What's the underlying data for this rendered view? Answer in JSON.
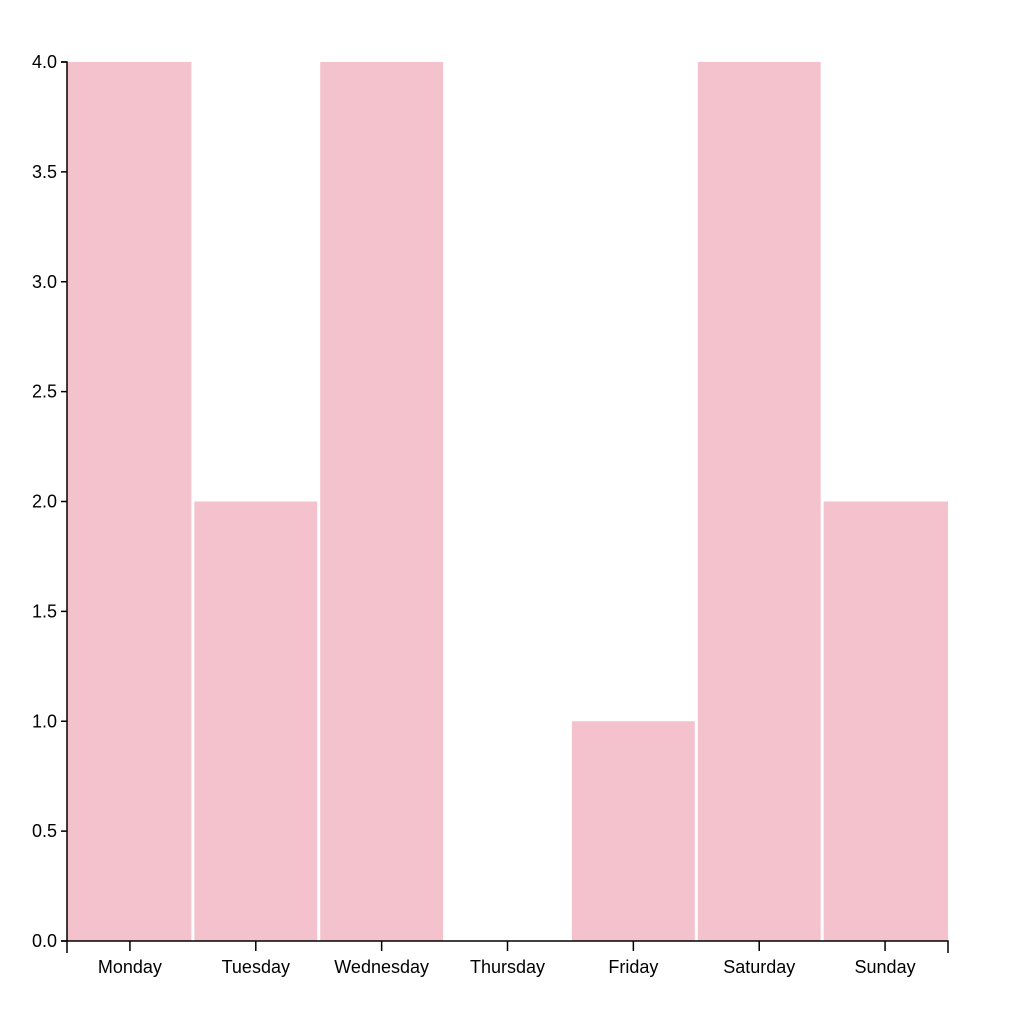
{
  "chart_data": {
    "type": "bar",
    "title": "",
    "xlabel": "",
    "ylabel": "",
    "categories": [
      "Monday",
      "Tuesday",
      "Wednesday",
      "Thursday",
      "Friday",
      "Saturday",
      "Sunday"
    ],
    "values": [
      4,
      2,
      4,
      0,
      1,
      4,
      2
    ],
    "ylim": [
      0,
      4
    ],
    "yticks": [
      "0.0",
      "0.5",
      "1.0",
      "1.5",
      "2.0",
      "2.5",
      "3.0",
      "3.5",
      "4.0"
    ],
    "bar_color": "#f4c2cc",
    "grid": false,
    "legend": "none"
  }
}
